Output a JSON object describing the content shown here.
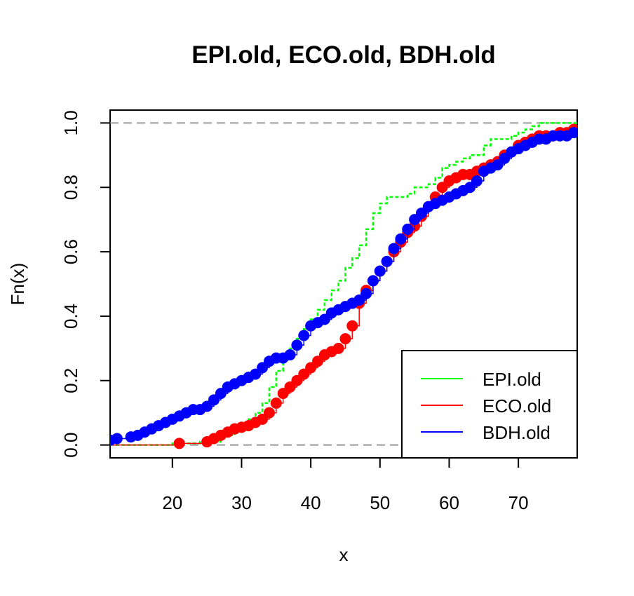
{
  "chart_data": {
    "type": "line",
    "title": "EPI.old, ECO.old, BDH.old",
    "xlabel": "x",
    "ylabel": "Fn(x)",
    "xlim": [
      11,
      78.5
    ],
    "ylim": [
      -0.04,
      1.04
    ],
    "xticks": [
      20,
      30,
      40,
      50,
      60,
      70
    ],
    "yticks": [
      0.0,
      0.2,
      0.4,
      0.6,
      0.8,
      1.0
    ],
    "xtick_labels": [
      "20",
      "30",
      "40",
      "50",
      "60",
      "70"
    ],
    "ytick_labels": [
      "0.0",
      "0.2",
      "0.4",
      "0.6",
      "0.8",
      "1.0"
    ],
    "reference_lines": [
      0,
      1
    ],
    "legend_position": "bottom-right",
    "series": [
      {
        "name": "EPI.old",
        "color": "#00ff00",
        "style": "step",
        "x": [
          12,
          20,
          24,
          27,
          29,
          30,
          31,
          32,
          33,
          34,
          35,
          36,
          37,
          38,
          39,
          40,
          41,
          42,
          43,
          44,
          45,
          46,
          47,
          48,
          49,
          50,
          51,
          52,
          53,
          54,
          55,
          56,
          57,
          58,
          59,
          60,
          61,
          62,
          63,
          64,
          65,
          66,
          67,
          68,
          69,
          70,
          71,
          72,
          73,
          78
        ],
        "y": [
          0.0,
          0.005,
          0.01,
          0.03,
          0.05,
          0.07,
          0.08,
          0.1,
          0.13,
          0.18,
          0.23,
          0.27,
          0.3,
          0.33,
          0.36,
          0.39,
          0.42,
          0.45,
          0.48,
          0.51,
          0.55,
          0.58,
          0.62,
          0.67,
          0.72,
          0.75,
          0.77,
          0.77,
          0.77,
          0.78,
          0.8,
          0.8,
          0.81,
          0.83,
          0.86,
          0.87,
          0.88,
          0.89,
          0.9,
          0.9,
          0.93,
          0.95,
          0.95,
          0.95,
          0.96,
          0.97,
          0.98,
          0.99,
          1.0,
          1.0
        ]
      },
      {
        "name": "ECO.old",
        "color": "#ff0000",
        "style": "points",
        "x": [
          21,
          25,
          26,
          27,
          28,
          29,
          30,
          31,
          32,
          33,
          34,
          35,
          36,
          37,
          38,
          39,
          40,
          41,
          42,
          43,
          44,
          45,
          46,
          47,
          48,
          49,
          50,
          51,
          52,
          53,
          54,
          55,
          56,
          57,
          58,
          59,
          60,
          61,
          62,
          63,
          64,
          65,
          66,
          67,
          68,
          69,
          70,
          71,
          72,
          73,
          74,
          75,
          76,
          77,
          78
        ],
        "y": [
          0.005,
          0.01,
          0.02,
          0.03,
          0.04,
          0.05,
          0.055,
          0.06,
          0.07,
          0.08,
          0.1,
          0.13,
          0.16,
          0.18,
          0.2,
          0.22,
          0.24,
          0.26,
          0.28,
          0.29,
          0.3,
          0.33,
          0.37,
          0.44,
          0.48,
          0.51,
          0.54,
          0.57,
          0.6,
          0.63,
          0.66,
          0.68,
          0.71,
          0.74,
          0.77,
          0.8,
          0.82,
          0.83,
          0.84,
          0.84,
          0.85,
          0.86,
          0.87,
          0.88,
          0.9,
          0.91,
          0.93,
          0.94,
          0.95,
          0.96,
          0.96,
          0.96,
          0.97,
          0.97,
          0.98
        ]
      },
      {
        "name": "BDH.old",
        "color": "#0000ff",
        "style": "points",
        "x": [
          11,
          12,
          14,
          15,
          16,
          17,
          18,
          19,
          20,
          21,
          22,
          23,
          24,
          25,
          26,
          27,
          28,
          29,
          30,
          31,
          32,
          33,
          34,
          35,
          36,
          37,
          38,
          39,
          40,
          41,
          42,
          43,
          44,
          45,
          46,
          47,
          48,
          49,
          50,
          51,
          52,
          53,
          54,
          55,
          56,
          57,
          58,
          59,
          60,
          61,
          62,
          63,
          64,
          65,
          66,
          67,
          68,
          69,
          70,
          71,
          72,
          73,
          74,
          75,
          76,
          77,
          78
        ],
        "y": [
          0.015,
          0.02,
          0.025,
          0.03,
          0.04,
          0.05,
          0.06,
          0.07,
          0.08,
          0.09,
          0.1,
          0.11,
          0.11,
          0.12,
          0.14,
          0.16,
          0.18,
          0.19,
          0.2,
          0.21,
          0.22,
          0.24,
          0.26,
          0.27,
          0.27,
          0.28,
          0.31,
          0.34,
          0.37,
          0.38,
          0.39,
          0.41,
          0.42,
          0.43,
          0.44,
          0.45,
          0.47,
          0.51,
          0.54,
          0.57,
          0.61,
          0.64,
          0.67,
          0.7,
          0.72,
          0.74,
          0.75,
          0.76,
          0.77,
          0.78,
          0.79,
          0.8,
          0.82,
          0.85,
          0.86,
          0.87,
          0.89,
          0.91,
          0.92,
          0.93,
          0.94,
          0.95,
          0.95,
          0.96,
          0.96,
          0.96,
          0.97
        ]
      }
    ]
  }
}
